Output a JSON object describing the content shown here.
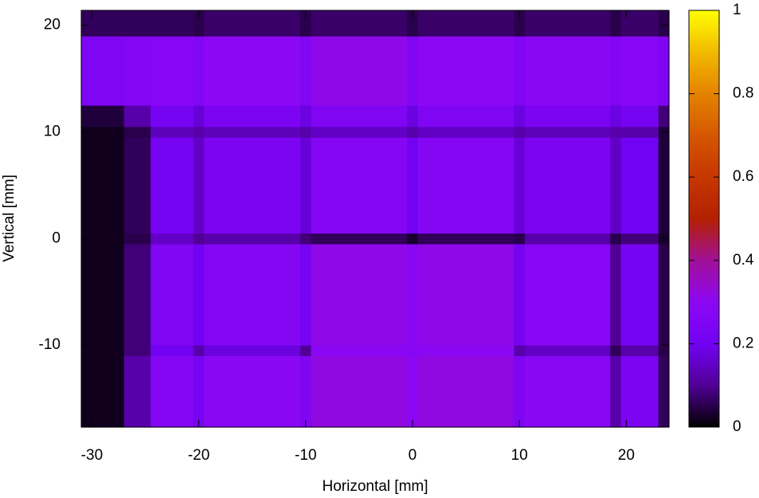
{
  "chart_data": {
    "type": "heatmap",
    "x_label": "Horizontal [mm]",
    "y_label": "Vertical [mm]",
    "x_edges": [
      -31,
      -27,
      -24.5,
      -20.5,
      -19.5,
      -10.5,
      -9.5,
      -0.5,
      0.5,
      9.5,
      10.5,
      18.5,
      19.5,
      23,
      24
    ],
    "y_edges": [
      -17.7,
      -11,
      -10,
      -0.5,
      0.5,
      9.5,
      10.5,
      12.5,
      19,
      21.4
    ],
    "z": [
      [
        0.02,
        0.12,
        0.27,
        0.22,
        0.29,
        0.25,
        0.32,
        0.3,
        0.32,
        0.25,
        0.29,
        0.12,
        0.24,
        0.06
      ],
      [
        0.02,
        0.08,
        0.2,
        0.12,
        0.18,
        0.1,
        0.29,
        0.28,
        0.29,
        0.12,
        0.15,
        0.06,
        0.12,
        0.05
      ],
      [
        0.02,
        0.08,
        0.25,
        0.2,
        0.27,
        0.22,
        0.31,
        0.29,
        0.31,
        0.22,
        0.28,
        0.1,
        0.22,
        0.05
      ],
      [
        0.02,
        0.05,
        0.15,
        0.1,
        0.12,
        0.08,
        0.06,
        0.03,
        0.06,
        0.05,
        0.12,
        0.05,
        0.08,
        0.03
      ],
      [
        0.02,
        0.06,
        0.22,
        0.15,
        0.24,
        0.17,
        0.27,
        0.2,
        0.27,
        0.17,
        0.24,
        0.15,
        0.2,
        0.04
      ],
      [
        0.02,
        0.05,
        0.14,
        0.12,
        0.14,
        0.12,
        0.15,
        0.12,
        0.15,
        0.12,
        0.14,
        0.12,
        0.12,
        0.04
      ],
      [
        0.04,
        0.12,
        0.22,
        0.17,
        0.24,
        0.18,
        0.25,
        0.18,
        0.25,
        0.18,
        0.24,
        0.18,
        0.22,
        0.08
      ],
      [
        0.25,
        0.27,
        0.28,
        0.26,
        0.3,
        0.26,
        0.31,
        0.26,
        0.3,
        0.26,
        0.29,
        0.26,
        0.28,
        0.25
      ],
      [
        0.06,
        0.06,
        0.06,
        0.05,
        0.07,
        0.05,
        0.07,
        0.05,
        0.07,
        0.05,
        0.07,
        0.05,
        0.07,
        0.05
      ]
    ],
    "xlim": [
      -31,
      24
    ],
    "xticks": [
      -30,
      -20,
      -10,
      0,
      10,
      20
    ],
    "ylim": [
      -17.7,
      21.4
    ],
    "yticks": [
      -10,
      0,
      10,
      20
    ],
    "cblim": [
      0,
      1
    ],
    "cbticks": [
      0,
      0.2,
      0.4,
      0.6,
      0.8,
      1
    ],
    "colormap": [
      "#000000",
      "#510096",
      "#7202f3",
      "#8c07f3",
      "#a11096",
      "#b42000",
      "#c63700",
      "#d55700",
      "#e48300",
      "#f2ba00",
      "#ffff00"
    ]
  }
}
